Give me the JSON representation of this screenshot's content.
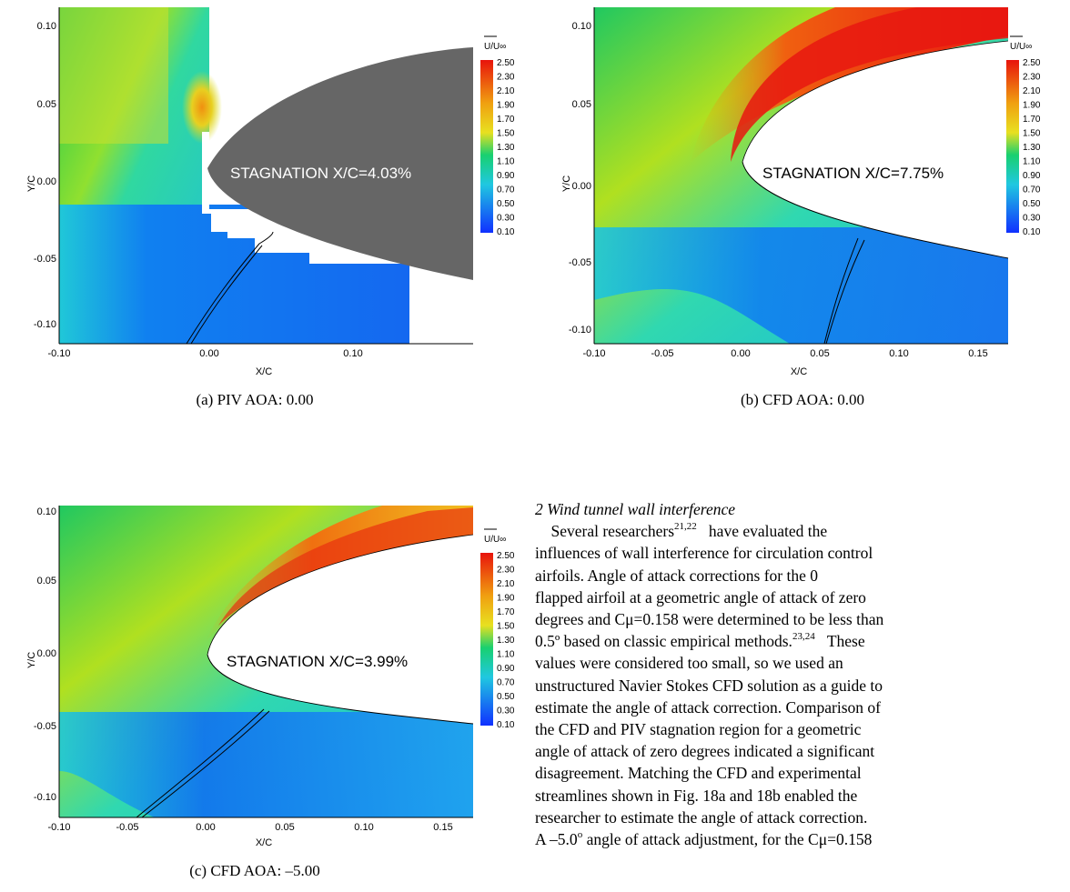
{
  "panels": [
    {
      "id": "a",
      "caption": "(a) PIV AOA: 0.00",
      "annotation": "STAGNATION X/C=4.03%",
      "x_label": "X/C",
      "y_label": "Y/C",
      "x_ticks": [
        "-0.10",
        "0.00",
        "0.10"
      ],
      "y_ticks": [
        "0.10",
        "0.05",
        "0.00",
        "-0.05",
        "-0.10"
      ]
    },
    {
      "id": "b",
      "caption": "(b) CFD AOA: 0.00",
      "annotation": "STAGNATION X/C=7.75%",
      "x_label": "X/C",
      "y_label": "Y/C",
      "x_ticks": [
        "-0.10",
        "-0.05",
        "0.00",
        "0.05",
        "0.10",
        "0.15"
      ],
      "y_ticks": [
        "0.10",
        "0.05",
        "0.00",
        "-0.05",
        "-0.10"
      ]
    },
    {
      "id": "c",
      "caption": "(c) CFD AOA: –5.00",
      "annotation": "STAGNATION X/C=3.99%",
      "x_label": "X/C",
      "y_label": "Y/C",
      "x_ticks": [
        "-0.10",
        "-0.05",
        "0.00",
        "0.05",
        "0.10",
        "0.15"
      ],
      "y_ticks": [
        "0.10",
        "0.05",
        "0.00",
        "-0.05",
        "-0.10"
      ]
    }
  ],
  "legend": {
    "title": "U/U∞",
    "levels": [
      "2.50",
      "2.30",
      "2.10",
      "1.90",
      "1.70",
      "1.50",
      "1.30",
      "1.10",
      "0.90",
      "0.70",
      "0.50",
      "0.30",
      "0.10"
    ]
  },
  "colors": {
    "solid_body": "#666666",
    "scale_high": "#e8140c",
    "scale_mid": "#18d070",
    "scale_low": "#1030ff"
  },
  "text": {
    "heading": "2 Wind tunnel wall interference",
    "lines": [
      "Several researchers",
      "have evaluated the",
      "influences of wall interference for circulation control",
      "airfoils.   Angle of attack corrections for the 0",
      "flapped airfoil at a geometric angle of attack of zero",
      "degrees and Cμ=0.158 were determined to be less than",
      "0.5º based on classic empirical methods.",
      "These",
      "values were considered too small, so we used an",
      "unstructured Navier Stokes CFD solution as a guide to",
      "estimate the angle of attack correction.  Comparison of",
      "the CFD and PIV stagnation region for a geometric",
      "angle of attack of zero degrees indicated a significant",
      "disagreement.   Matching the CFD and experimental",
      "streamlines shown in Fig. 18a and 18b enabled the",
      "researcher to estimate the angle of attack correction.",
      "A –5.0",
      "angle of attack adjustment, for the Cμ=0.158"
    ],
    "ref1": "21,22",
    "ref2": "23,24",
    "deg": "o"
  }
}
